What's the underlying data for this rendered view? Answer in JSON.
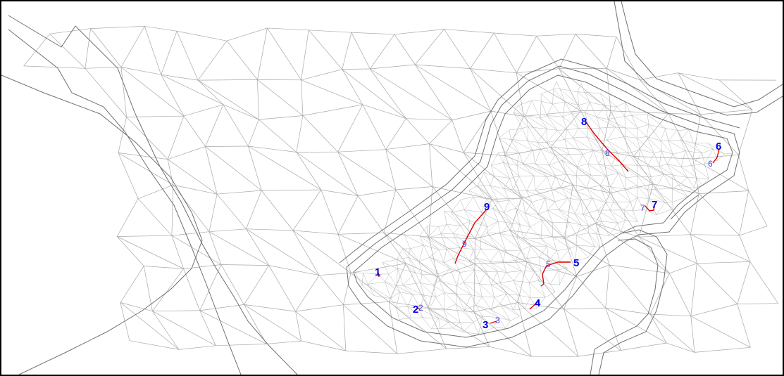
{
  "map": {
    "background": "#ffffff",
    "mesh_color": "#a8a8a8",
    "track_color": "#e00000",
    "label_color": "#0000e6",
    "markers": [
      {
        "id": "1",
        "start_label": "1",
        "end_label": ""
      },
      {
        "id": "2",
        "start_label": "2",
        "end_label": "2"
      },
      {
        "id": "3",
        "start_label": "3",
        "end_label": "3"
      },
      {
        "id": "4",
        "start_label": "4",
        "end_label": ""
      },
      {
        "id": "5",
        "start_label": "5",
        "end_label": "5"
      },
      {
        "id": "6",
        "start_label": "6",
        "end_label": "6"
      },
      {
        "id": "7",
        "start_label": "7",
        "end_label": "7"
      },
      {
        "id": "8",
        "start_label": "8",
        "end_label": "8"
      },
      {
        "id": "9",
        "start_label": "9",
        "end_label": "9"
      }
    ]
  }
}
